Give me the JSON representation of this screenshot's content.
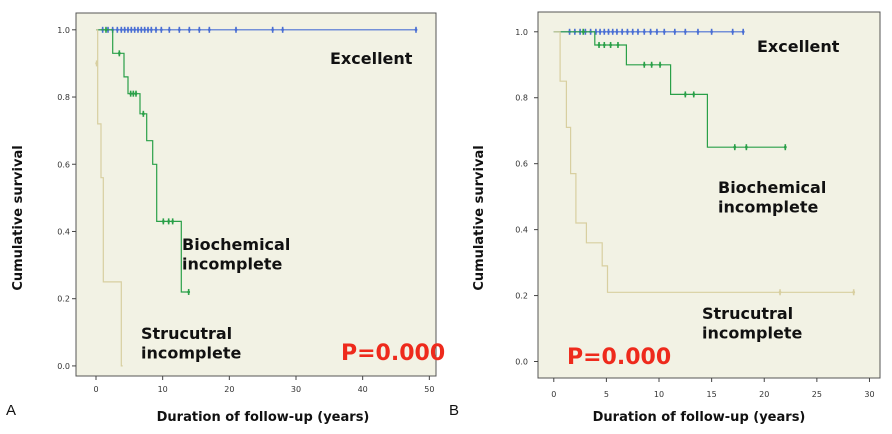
{
  "colors": {
    "excellent": "#4a6fd4",
    "biochemical": "#2aa048",
    "structural": "#d8cfa0",
    "pvalue": "#ee2a1c",
    "panel_bg": "#f2f2e4"
  },
  "chart_data": [
    {
      "panel": "A",
      "type": "line",
      "xlabel": "Duration of follow-up (years)",
      "ylabel": "Cumulative survival",
      "xlim": [
        -3,
        51
      ],
      "ylim": [
        -0.03,
        1.05
      ],
      "xticks": [
        "0",
        "10",
        "20",
        "30",
        "40",
        "50"
      ],
      "yticks": [
        "0.0",
        "0.2",
        "0.4",
        "0.6",
        "0.8",
        "1.0"
      ],
      "pvalue": "P=0.000",
      "annotations": [
        {
          "lines": [
            "Excellent"
          ],
          "series": "excellent"
        },
        {
          "lines": [
            "Biochemical",
            "incomplete"
          ],
          "series": "biochemical"
        },
        {
          "lines": [
            "Strucutral",
            "incomplete"
          ],
          "series": "structural"
        }
      ],
      "series": [
        {
          "key": "excellent",
          "name": "Excellent",
          "steps": [
            [
              0,
              1.0
            ],
            [
              48,
              1.0
            ]
          ],
          "censored": [
            [
              1,
              1
            ],
            [
              1.8,
              1
            ],
            [
              2.5,
              1
            ],
            [
              3.2,
              1
            ],
            [
              3.8,
              1
            ],
            [
              4.3,
              1
            ],
            [
              4.8,
              1
            ],
            [
              5.3,
              1
            ],
            [
              5.8,
              1
            ],
            [
              6.3,
              1
            ],
            [
              6.8,
              1
            ],
            [
              7.3,
              1
            ],
            [
              7.8,
              1
            ],
            [
              8.3,
              1
            ],
            [
              9,
              1
            ],
            [
              9.8,
              1
            ],
            [
              11,
              1
            ],
            [
              12.5,
              1
            ],
            [
              14,
              1
            ],
            [
              15.5,
              1
            ],
            [
              17,
              1
            ],
            [
              21,
              1
            ],
            [
              26.5,
              1
            ],
            [
              28,
              1
            ],
            [
              48,
              1
            ]
          ]
        },
        {
          "key": "biochemical",
          "name": "Biochemical incomplete",
          "steps": [
            [
              0,
              1.0
            ],
            [
              2.5,
              1.0
            ],
            [
              2.5,
              0.93
            ],
            [
              4.2,
              0.93
            ],
            [
              4.2,
              0.86
            ],
            [
              4.8,
              0.86
            ],
            [
              4.8,
              0.81
            ],
            [
              6.6,
              0.81
            ],
            [
              6.6,
              0.75
            ],
            [
              7.6,
              0.75
            ],
            [
              7.6,
              0.67
            ],
            [
              8.5,
              0.67
            ],
            [
              8.5,
              0.6
            ],
            [
              9.1,
              0.6
            ],
            [
              9.1,
              0.43
            ],
            [
              12.8,
              0.43
            ],
            [
              12.8,
              0.22
            ],
            [
              13.9,
              0.22
            ]
          ],
          "censored": [
            [
              1.5,
              1
            ],
            [
              3.5,
              0.93
            ],
            [
              5.2,
              0.81
            ],
            [
              5.6,
              0.81
            ],
            [
              6,
              0.81
            ],
            [
              7.1,
              0.75
            ],
            [
              10.1,
              0.43
            ],
            [
              10.9,
              0.43
            ],
            [
              11.5,
              0.43
            ],
            [
              13.9,
              0.22
            ]
          ]
        },
        {
          "key": "structural",
          "name": "Structural incomplete",
          "steps": [
            [
              0,
              1.0
            ],
            [
              0.25,
              1.0
            ],
            [
              0.25,
              0.72
            ],
            [
              0.75,
              0.72
            ],
            [
              0.75,
              0.56
            ],
            [
              1.1,
              0.56
            ],
            [
              1.1,
              0.25
            ],
            [
              3.8,
              0.25
            ],
            [
              3.8,
              0.0
            ],
            [
              4.0,
              0.0
            ]
          ],
          "censored": [
            [
              0.1,
              0.9
            ]
          ]
        }
      ]
    },
    {
      "panel": "B",
      "type": "line",
      "xlabel": "Duration of follow-up (years)",
      "ylabel": "Cumulative survival",
      "xlim": [
        -1.5,
        31
      ],
      "ylim": [
        -0.05,
        1.06
      ],
      "xticks": [
        "0",
        "5",
        "10",
        "15",
        "20",
        "25",
        "30"
      ],
      "yticks": [
        "0.0",
        "0.2",
        "0.4",
        "0.6",
        "0.8",
        "1.0"
      ],
      "pvalue": "P=0.000",
      "annotations": [
        {
          "lines": [
            "Excellent"
          ],
          "series": "excellent"
        },
        {
          "lines": [
            "Biochemical",
            "incomplete"
          ],
          "series": "biochemical"
        },
        {
          "lines": [
            "Strucutral",
            "incomplete"
          ],
          "series": "structural"
        }
      ],
      "series": [
        {
          "key": "excellent",
          "name": "Excellent",
          "steps": [
            [
              0,
              1.0
            ],
            [
              18,
              1.0
            ]
          ],
          "censored": [
            [
              1.5,
              1
            ],
            [
              2,
              1
            ],
            [
              2.5,
              1
            ],
            [
              3,
              1
            ],
            [
              3.5,
              1
            ],
            [
              4,
              1
            ],
            [
              4.4,
              1
            ],
            [
              4.8,
              1
            ],
            [
              5.2,
              1
            ],
            [
              5.6,
              1
            ],
            [
              6,
              1
            ],
            [
              6.5,
              1
            ],
            [
              7,
              1
            ],
            [
              7.5,
              1
            ],
            [
              8,
              1
            ],
            [
              8.6,
              1
            ],
            [
              9.2,
              1
            ],
            [
              9.8,
              1
            ],
            [
              10.5,
              1
            ],
            [
              11.5,
              1
            ],
            [
              12.5,
              1
            ],
            [
              13.7,
              1
            ],
            [
              15,
              1
            ],
            [
              17,
              1
            ],
            [
              18,
              1
            ]
          ]
        },
        {
          "key": "biochemical",
          "name": "Biochemical incomplete",
          "steps": [
            [
              0,
              1.0
            ],
            [
              3.9,
              1.0
            ],
            [
              3.9,
              0.96
            ],
            [
              6.9,
              0.96
            ],
            [
              6.9,
              0.9
            ],
            [
              11.1,
              0.9
            ],
            [
              11.1,
              0.81
            ],
            [
              14.6,
              0.81
            ],
            [
              14.6,
              0.65
            ],
            [
              22,
              0.65
            ]
          ],
          "censored": [
            [
              2.8,
              1
            ],
            [
              4.3,
              0.96
            ],
            [
              4.8,
              0.96
            ],
            [
              5.4,
              0.96
            ],
            [
              6.1,
              0.96
            ],
            [
              8.6,
              0.9
            ],
            [
              9.3,
              0.9
            ],
            [
              10.1,
              0.9
            ],
            [
              12.5,
              0.81
            ],
            [
              13.3,
              0.81
            ],
            [
              17.2,
              0.65
            ],
            [
              18.3,
              0.65
            ],
            [
              22,
              0.65
            ]
          ]
        },
        {
          "key": "structural",
          "name": "Structural incomplete",
          "steps": [
            [
              0,
              1.0
            ],
            [
              0.6,
              1.0
            ],
            [
              0.6,
              0.85
            ],
            [
              1.2,
              0.85
            ],
            [
              1.2,
              0.71
            ],
            [
              1.6,
              0.71
            ],
            [
              1.6,
              0.57
            ],
            [
              2.1,
              0.57
            ],
            [
              2.1,
              0.42
            ],
            [
              3.1,
              0.42
            ],
            [
              3.1,
              0.36
            ],
            [
              4.6,
              0.36
            ],
            [
              4.6,
              0.29
            ],
            [
              5.1,
              0.29
            ],
            [
              5.1,
              0.21
            ],
            [
              28.5,
              0.21
            ]
          ],
          "censored": [
            [
              21.5,
              0.21
            ],
            [
              28.5,
              0.21
            ]
          ]
        }
      ]
    }
  ]
}
